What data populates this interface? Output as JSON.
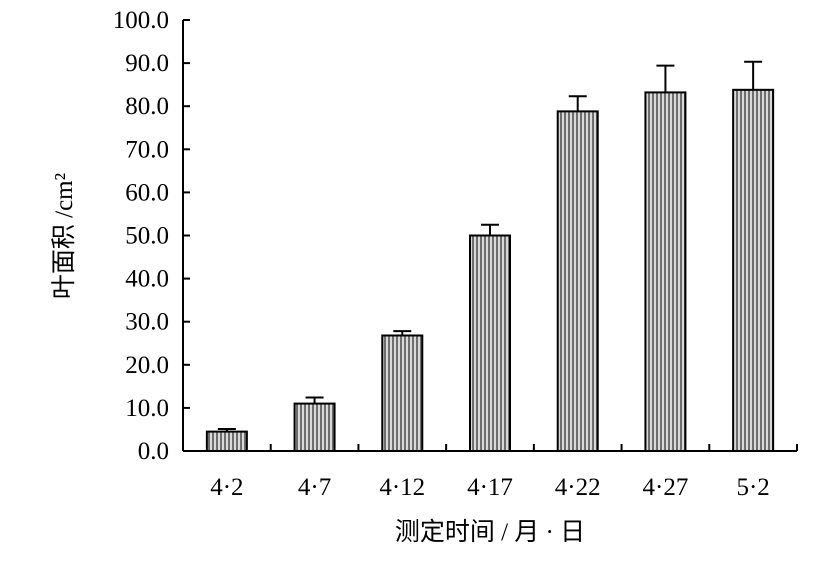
{
  "chart_data": {
    "type": "bar",
    "title": "",
    "xlabel": "测定时间 / 月 · 日",
    "ylabel": "叶面积 /cm²",
    "categories": [
      "4·2",
      "4·7",
      "4·12",
      "4·17",
      "4·22",
      "4·27",
      "5·2"
    ],
    "values": [
      4.5,
      11.0,
      26.8,
      50.0,
      78.8,
      83.2,
      83.8
    ],
    "error_upper": [
      0.6,
      1.4,
      1.0,
      2.5,
      3.5,
      6.2,
      6.5
    ],
    "ylim": [
      0,
      100
    ],
    "yticks": [
      "0.0",
      "10.0",
      "20.0",
      "30.0",
      "40.0",
      "50.0",
      "60.0",
      "70.0",
      "80.0",
      "90.0",
      "100.0"
    ],
    "grid": false,
    "legend": "none",
    "bar_fill": "vertical-stripes",
    "colors": {
      "bar_stripe": "#6e6e6e",
      "bar_bg": "#d9d9d9",
      "axis": "#000000"
    }
  }
}
